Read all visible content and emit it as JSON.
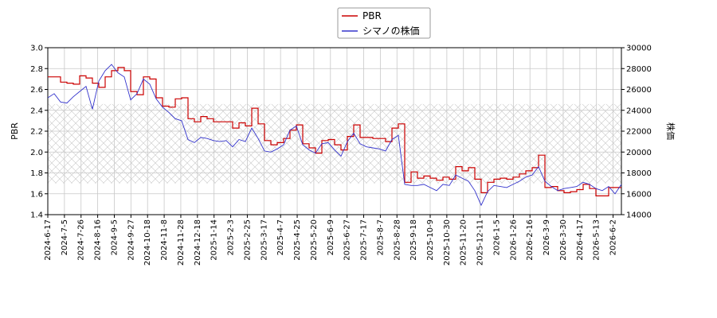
{
  "chart_data": {
    "type": "line",
    "legend": {
      "placement": "top-center"
    },
    "grid": true,
    "band_hatch": {
      "y_range": [
        1.7,
        2.46
      ],
      "pattern": "cross-hatch"
    },
    "x_ticks": [
      "2024-6-17",
      "2024-7-5",
      "2024-7-26",
      "2024-8-16",
      "2024-9-5",
      "2024-9-27",
      "2024-10-18",
      "2024-11-8",
      "2024-11-28",
      "2024-12-18",
      "2025-1-14",
      "2025-2-3",
      "2025-2-25",
      "2025-3-17",
      "2025-4-7",
      "2025-4-25",
      "2025-5-20",
      "2025-6-9",
      "2025-6-27",
      "2025-7-17",
      "2025-8-7",
      "2025-8-28",
      "2025-9-18",
      "2025-10-9",
      "2025-10-30",
      "2025-11-20",
      "2025-12-11",
      "2026-1-5",
      "2026-1-26",
      "2026-2-16",
      "2026-3-9",
      "2026-3-30",
      "2026-4-17",
      "2026-5-13",
      "2026-6-2"
    ],
    "y_left": {
      "label": "PBR",
      "ylim": [
        1.4,
        3.0
      ],
      "ticks": [
        "1.4",
        "1.6",
        "1.8",
        "2.0",
        "2.2",
        "2.4",
        "2.6",
        "2.8",
        "3.0"
      ]
    },
    "y_right": {
      "label": "株価",
      "ylim": [
        14000,
        30000
      ],
      "ticks": [
        "14000",
        "16000",
        "18000",
        "20000",
        "22000",
        "24000",
        "26000",
        "28000",
        "30000"
      ]
    },
    "series": [
      {
        "name": "PBR",
        "color": "#cc0000",
        "axis": "left",
        "style": "step",
        "values": [
          2.72,
          2.72,
          2.67,
          2.66,
          2.65,
          2.73,
          2.71,
          2.66,
          2.62,
          2.72,
          2.78,
          2.81,
          2.78,
          2.58,
          2.55,
          2.72,
          2.7,
          2.52,
          2.44,
          2.43,
          2.51,
          2.52,
          2.32,
          2.29,
          2.34,
          2.32,
          2.29,
          2.29,
          2.29,
          2.23,
          2.28,
          2.25,
          2.42,
          2.27,
          2.11,
          2.07,
          2.09,
          2.13,
          2.21,
          2.26,
          2.08,
          2.04,
          1.99,
          2.11,
          2.12,
          2.07,
          2.02,
          2.15,
          2.26,
          2.14,
          2.14,
          2.13,
          2.13,
          2.1,
          2.23,
          2.27,
          1.71,
          1.81,
          1.75,
          1.77,
          1.75,
          1.73,
          1.76,
          1.74,
          1.86,
          1.82,
          1.85,
          1.74,
          1.61,
          1.71,
          1.74,
          1.75,
          1.74,
          1.76,
          1.79,
          1.82,
          1.85,
          1.97,
          1.66,
          1.67,
          1.63,
          1.61,
          1.62,
          1.64,
          1.69,
          1.65,
          1.58,
          1.58,
          1.66,
          1.66,
          1.66
        ]
      },
      {
        "name": "シマノの株価",
        "color": "#3333cc",
        "axis": "right",
        "style": "line",
        "values": [
          25200,
          25600,
          24800,
          24700,
          25300,
          25800,
          26300,
          24100,
          26800,
          27800,
          28400,
          27600,
          27200,
          25000,
          25600,
          27000,
          26500,
          25100,
          24300,
          23800,
          23200,
          23000,
          21200,
          20900,
          21400,
          21300,
          21100,
          21000,
          21100,
          20500,
          21200,
          21000,
          22300,
          21300,
          20100,
          20000,
          20300,
          20700,
          22100,
          22500,
          20700,
          20200,
          19900,
          20800,
          20900,
          20200,
          19600,
          21000,
          21800,
          20800,
          20500,
          20400,
          20300,
          20100,
          21200,
          21600,
          16900,
          16800,
          16800,
          16900,
          16600,
          16300,
          16900,
          16800,
          17800,
          17500,
          17200,
          16300,
          14900,
          16200,
          16800,
          16700,
          16600,
          16900,
          17200,
          17600,
          17800,
          18600,
          17200,
          16700,
          16300,
          16500,
          16600,
          16700,
          17100,
          16900,
          16500,
          16300,
          16700,
          16000,
          16900
        ]
      }
    ]
  }
}
